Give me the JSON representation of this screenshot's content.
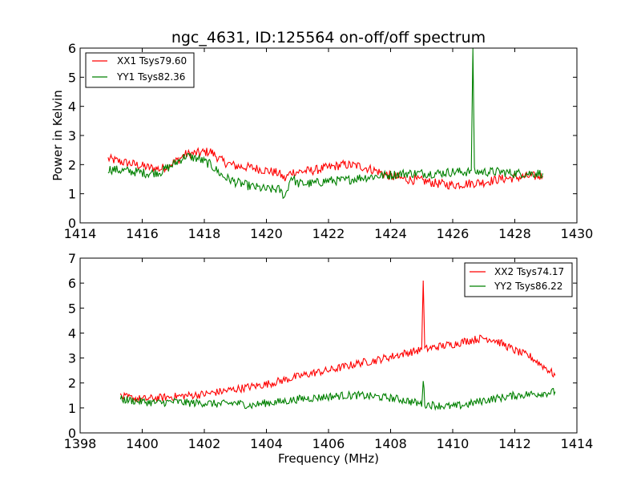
{
  "chart_data": [
    {
      "type": "line",
      "title": "ngc_4631, ID:125564 on-off/off spectrum",
      "xlabel": "",
      "ylabel": "Power in Kelvin",
      "xlim": [
        1414,
        1430
      ],
      "ylim": [
        0,
        6
      ],
      "xticks": [
        "1414",
        "1416",
        "1418",
        "1420",
        "1422",
        "1424",
        "1426",
        "1428",
        "1430"
      ],
      "yticks": [
        "0",
        "1",
        "2",
        "3",
        "4",
        "5",
        "6"
      ],
      "legend_position": "top-left",
      "series": [
        {
          "name": "XX1 Tsys79.60",
          "color": "#ff0000",
          "x": [
            1414.9,
            1415.3,
            1415.8,
            1416.2,
            1416.6,
            1417.0,
            1417.4,
            1417.8,
            1418.2,
            1418.6,
            1419.0,
            1419.5,
            1420.0,
            1420.4,
            1420.6,
            1420.8,
            1421.0,
            1421.5,
            1422.0,
            1422.5,
            1423.0,
            1423.5,
            1424.0,
            1424.5,
            1425.0,
            1425.5,
            1426.0,
            1426.5,
            1427.0,
            1427.5,
            1428.0,
            1428.5,
            1428.9
          ],
          "y": [
            2.2,
            2.1,
            2.0,
            1.9,
            1.85,
            2.05,
            2.35,
            2.4,
            2.45,
            2.1,
            1.95,
            1.9,
            1.8,
            1.7,
            1.5,
            1.75,
            1.75,
            1.8,
            1.9,
            2.0,
            1.95,
            1.8,
            1.6,
            1.5,
            1.45,
            1.35,
            1.3,
            1.35,
            1.4,
            1.5,
            1.55,
            1.6,
            1.6
          ]
        },
        {
          "name": "YY1 Tsys82.36",
          "color": "#008000",
          "x": [
            1414.9,
            1415.3,
            1415.8,
            1416.2,
            1416.6,
            1417.0,
            1417.4,
            1417.8,
            1418.2,
            1418.6,
            1419.0,
            1419.5,
            1420.0,
            1420.4,
            1420.6,
            1420.8,
            1421.0,
            1421.5,
            1422.0,
            1422.5,
            1423.0,
            1423.5,
            1424.0,
            1424.5,
            1425.0,
            1425.5,
            1426.0,
            1426.5,
            1426.6,
            1426.65,
            1426.7,
            1426.8,
            1427.0,
            1427.5,
            1428.0,
            1428.5,
            1428.9
          ],
          "y": [
            1.85,
            1.8,
            1.75,
            1.7,
            1.75,
            2.0,
            2.3,
            2.2,
            2.0,
            1.6,
            1.4,
            1.25,
            1.15,
            1.15,
            0.9,
            1.6,
            1.35,
            1.35,
            1.45,
            1.45,
            1.55,
            1.6,
            1.65,
            1.7,
            1.7,
            1.7,
            1.75,
            1.75,
            1.8,
            6.0,
            1.75,
            1.75,
            1.75,
            1.75,
            1.7,
            1.7,
            1.7
          ]
        }
      ]
    },
    {
      "type": "line",
      "title": "",
      "xlabel": "Frequency (MHz)",
      "ylabel": "",
      "xlim": [
        1398,
        1414
      ],
      "ylim": [
        0,
        7
      ],
      "xticks": [
        "1398",
        "1400",
        "1402",
        "1404",
        "1406",
        "1408",
        "1410",
        "1412",
        "1414"
      ],
      "yticks": [
        "0",
        "1",
        "2",
        "3",
        "4",
        "5",
        "6",
        "7"
      ],
      "legend_position": "top-right",
      "series": [
        {
          "name": "XX2 Tsys74.17",
          "color": "#ff0000",
          "x": [
            1399.3,
            1400.0,
            1400.5,
            1401.0,
            1401.5,
            1402.0,
            1402.5,
            1403.0,
            1403.5,
            1404.0,
            1404.5,
            1405.0,
            1405.5,
            1406.0,
            1406.5,
            1407.0,
            1407.5,
            1408.0,
            1408.5,
            1408.9,
            1409.0,
            1409.05,
            1409.1,
            1409.5,
            1410.0,
            1410.5,
            1411.0,
            1411.3,
            1411.7,
            1412.0,
            1412.5,
            1413.0,
            1413.3
          ],
          "y": [
            1.45,
            1.35,
            1.4,
            1.45,
            1.5,
            1.55,
            1.65,
            1.75,
            1.85,
            1.95,
            2.1,
            2.25,
            2.4,
            2.5,
            2.65,
            2.8,
            2.9,
            3.05,
            3.2,
            3.3,
            3.35,
            6.1,
            3.35,
            3.45,
            3.55,
            3.7,
            3.8,
            3.75,
            3.5,
            3.3,
            3.05,
            2.6,
            2.3
          ]
        },
        {
          "name": "YY2 Tsys86.22",
          "color": "#008000",
          "x": [
            1399.3,
            1400.0,
            1400.5,
            1401.0,
            1401.5,
            1402.0,
            1402.5,
            1403.0,
            1403.5,
            1404.0,
            1404.5,
            1405.0,
            1405.5,
            1406.0,
            1406.5,
            1407.0,
            1407.5,
            1408.0,
            1408.5,
            1409.0,
            1409.05,
            1409.1,
            1409.5,
            1410.0,
            1410.5,
            1411.0,
            1411.5,
            1412.0,
            1412.5,
            1413.0,
            1413.3
          ],
          "y": [
            1.35,
            1.25,
            1.2,
            1.25,
            1.2,
            1.2,
            1.15,
            1.2,
            1.1,
            1.2,
            1.25,
            1.35,
            1.4,
            1.45,
            1.5,
            1.5,
            1.45,
            1.4,
            1.3,
            1.15,
            2.15,
            1.15,
            1.1,
            1.05,
            1.15,
            1.3,
            1.4,
            1.5,
            1.55,
            1.6,
            1.65
          ]
        }
      ]
    }
  ]
}
